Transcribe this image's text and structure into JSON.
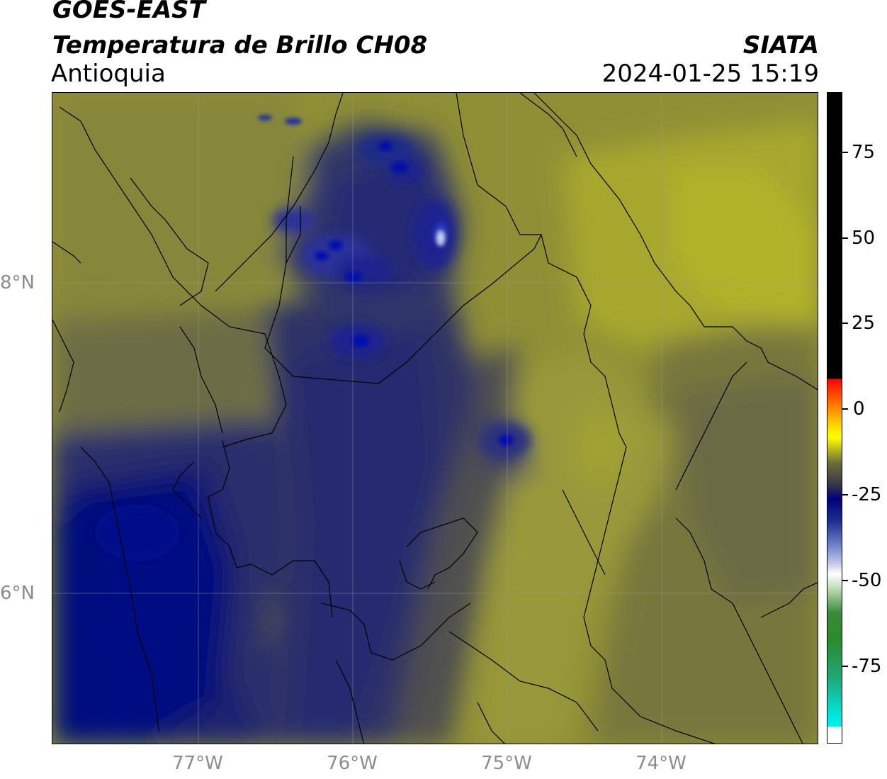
{
  "header": {
    "satellite": "GOES-EAST",
    "product": "Temperatura de Brillo CH08",
    "region": "Antioquia",
    "agency": "SIATA",
    "timestamp": "2024-01-25 15:19"
  },
  "map": {
    "lat_labels": [
      "8°N",
      "6°N"
    ],
    "lon_labels": [
      "77°W",
      "76°W",
      "75°W",
      "74°W"
    ]
  },
  "colorbar": {
    "ticks": [
      "75",
      "50",
      "25",
      "0",
      "-25",
      "-50",
      "-75"
    ]
  },
  "colors": {
    "warm_olive": "#9a9a30",
    "bright_yellow": "#b5b52a",
    "gray": "#5a5a4c",
    "cold_navy": "#000080"
  }
}
